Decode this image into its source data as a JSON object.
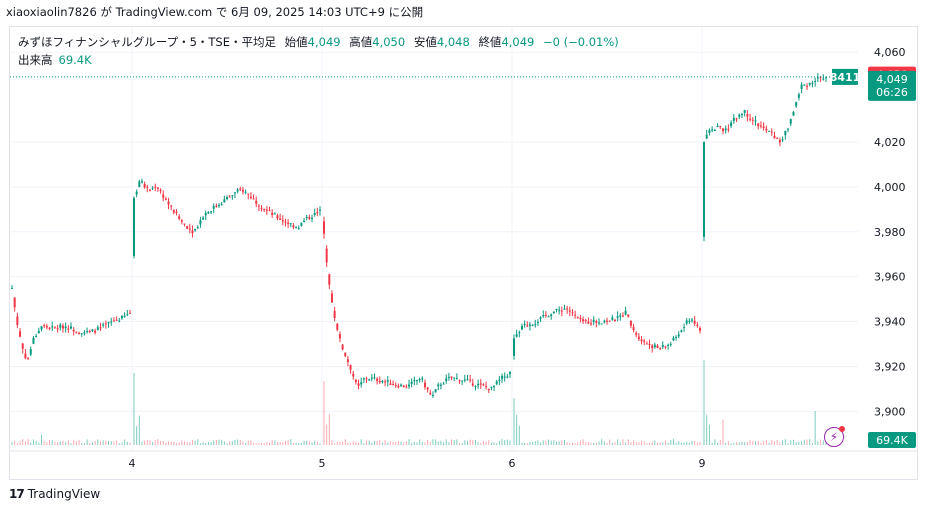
{
  "header": {
    "publish_line": "xiaoxiaolin7826 が TradingView.com で 6月 09, 2025 14:03 UTC+9 に公開"
  },
  "legend": {
    "title": "みずほフィナンシャルグループ・5・TSE・平均足",
    "open_label": "始値",
    "open": "4,049",
    "high_label": "高値",
    "high": "4,050",
    "low_label": "安値",
    "low": "4,048",
    "close_label": "終値",
    "close": "4,049",
    "change": "−0 (−0.01%)",
    "volume_label": "出来高",
    "volume": "69.4K"
  },
  "price_axis": {
    "ticks": [
      "3,900",
      "3,920",
      "3,940",
      "3,960",
      "3,980",
      "4,000",
      "4,020",
      "4,060"
    ],
    "high_badge": "4,050",
    "last_badge": "4,049",
    "countdown": "06:26",
    "volume_badge": "69.4K",
    "last_tag": "8411"
  },
  "time_axis": {
    "labels": [
      "4",
      "5",
      "6",
      "9"
    ]
  },
  "footer": {
    "brand": "TradingView",
    "logo": "17"
  },
  "colors": {
    "up": "#089981",
    "down": "#f23645",
    "grid": "#f0f3fa",
    "axis_text": "#131722"
  },
  "chart_data": {
    "type": "candlestick",
    "symbol": "みずほフィナンシャルグループ",
    "interval": "5",
    "exchange": "TSE",
    "chart_style": "平均足",
    "ylim": [
      3885,
      4065
    ],
    "y_ticks": [
      3900,
      3920,
      3940,
      3960,
      3980,
      4000,
      4020,
      4060
    ],
    "sessions": [
      {
        "x_label": "",
        "path": [
          [
            0,
            3955
          ],
          [
            0.04,
            3940
          ],
          [
            0.09,
            3928
          ],
          [
            0.13,
            3922
          ],
          [
            0.18,
            3932
          ],
          [
            0.25,
            3938
          ],
          [
            0.35,
            3937
          ],
          [
            0.45,
            3938
          ],
          [
            0.55,
            3936
          ],
          [
            0.65,
            3935
          ],
          [
            0.75,
            3937
          ],
          [
            0.85,
            3940
          ],
          [
            0.95,
            3942
          ],
          [
            1.0,
            3944
          ]
        ]
      },
      {
        "x_label": "4",
        "path": [
          [
            0,
            3995
          ],
          [
            0.03,
            4003
          ],
          [
            0.08,
            3998
          ],
          [
            0.12,
            4001
          ],
          [
            0.18,
            3993
          ],
          [
            0.25,
            3985
          ],
          [
            0.32,
            3980
          ],
          [
            0.38,
            3988
          ],
          [
            0.45,
            3992
          ],
          [
            0.52,
            3996
          ],
          [
            0.58,
            3999
          ],
          [
            0.65,
            3994
          ],
          [
            0.72,
            3989
          ],
          [
            0.8,
            3985
          ],
          [
            0.88,
            3982
          ],
          [
            0.93,
            3986
          ],
          [
            1.0,
            3989
          ]
        ]
      },
      {
        "x_label": "5",
        "path": [
          [
            0,
            3980
          ],
          [
            0.02,
            3960
          ],
          [
            0.05,
            3945
          ],
          [
            0.09,
            3930
          ],
          [
            0.14,
            3920
          ],
          [
            0.18,
            3910
          ],
          [
            0.22,
            3915
          ],
          [
            0.3,
            3914
          ],
          [
            0.38,
            3912
          ],
          [
            0.45,
            3911
          ],
          [
            0.52,
            3915
          ],
          [
            0.58,
            3906
          ],
          [
            0.62,
            3912
          ],
          [
            0.68,
            3915
          ],
          [
            0.75,
            3914
          ],
          [
            0.82,
            3912
          ],
          [
            0.9,
            3910
          ],
          [
            0.96,
            3915
          ],
          [
            1.0,
            3917
          ]
        ]
      },
      {
        "x_label": "6",
        "path": [
          [
            0,
            3932
          ],
          [
            0.05,
            3938
          ],
          [
            0.12,
            3940
          ],
          [
            0.2,
            3944
          ],
          [
            0.28,
            3946
          ],
          [
            0.36,
            3940
          ],
          [
            0.45,
            3940
          ],
          [
            0.55,
            3941
          ],
          [
            0.6,
            3944
          ],
          [
            0.66,
            3934
          ],
          [
            0.72,
            3930
          ],
          [
            0.78,
            3928
          ],
          [
            0.84,
            3930
          ],
          [
            0.9,
            3936
          ],
          [
            0.95,
            3942
          ],
          [
            1.0,
            3936
          ]
        ]
      },
      {
        "x_label": "9",
        "path": [
          [
            0,
            4020
          ],
          [
            0.05,
            4025
          ],
          [
            0.12,
            4027
          ],
          [
            0.18,
            4025
          ],
          [
            0.25,
            4030
          ],
          [
            0.32,
            4034
          ],
          [
            0.4,
            4030
          ],
          [
            0.48,
            4026
          ],
          [
            0.55,
            4024
          ],
          [
            0.62,
            4020
          ],
          [
            0.68,
            4025
          ],
          [
            0.74,
            4035
          ],
          [
            0.8,
            4045
          ],
          [
            0.86,
            4046
          ],
          [
            0.92,
            4048
          ],
          [
            1.0,
            4049
          ]
        ]
      }
    ],
    "last_price": 4049,
    "high": 4050,
    "low": 4048,
    "volume_last": "69.4K",
    "volume_spikes": [
      {
        "session": 0,
        "pos": 0.25,
        "level": 0.12
      },
      {
        "session": 1,
        "pos": 0.0,
        "level": 0.85
      },
      {
        "session": 2,
        "pos": 0.0,
        "level": 0.75
      },
      {
        "session": 3,
        "pos": 0.0,
        "level": 0.55
      },
      {
        "session": 4,
        "pos": 0.0,
        "level": 1.0
      },
      {
        "session": 4,
        "pos": 0.15,
        "level": 0.3
      },
      {
        "session": 4,
        "pos": 0.92,
        "level": 0.4
      }
    ]
  }
}
